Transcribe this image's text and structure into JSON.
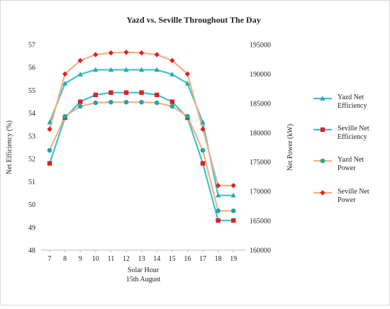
{
  "chart_data": {
    "type": "line",
    "title": "Yazd vs. Seville Throughout The Day",
    "xlabel": "Solar Hour",
    "xlabel_sub": "15th August",
    "ylabel_left": "Net Efficiency (%)",
    "ylabel_right": "Net Power (kW)",
    "x": [
      7,
      8,
      9,
      10,
      11,
      12,
      13,
      14,
      15,
      16,
      17,
      18,
      19
    ],
    "ylim_left": [
      48,
      57
    ],
    "yticks_left": [
      48,
      49,
      50,
      51,
      52,
      53,
      54,
      55,
      56,
      57
    ],
    "ylim_right": [
      160000,
      195000
    ],
    "yticks_right": [
      160000,
      165000,
      170000,
      175000,
      180000,
      185000,
      190000,
      195000
    ],
    "grid": false,
    "legend_position": "right",
    "series": [
      {
        "name": "Yazd Net Efficiency",
        "axis": "left",
        "marker": "triangle",
        "color": "#3ec1d3",
        "marker_color": "#20a8b0",
        "values": [
          53.6,
          55.3,
          55.7,
          55.9,
          55.9,
          55.9,
          55.9,
          55.9,
          55.7,
          55.3,
          53.6,
          50.4,
          50.4
        ]
      },
      {
        "name": "Seville Net Efficiency",
        "axis": "left",
        "marker": "square",
        "color": "#3ec1d3",
        "marker_color": "#e02020",
        "values": [
          51.8,
          53.8,
          54.5,
          54.8,
          54.9,
          54.9,
          54.9,
          54.8,
          54.5,
          53.8,
          51.8,
          49.3,
          49.3
        ]
      },
      {
        "name": "Yazd Net Power",
        "axis": "right",
        "marker": "circle",
        "color": "#f4b183",
        "marker_color": "#20a8a0",
        "values": [
          177000,
          182800,
          184500,
          185100,
          185200,
          185200,
          185200,
          185100,
          184500,
          182800,
          177000,
          166700,
          166700
        ]
      },
      {
        "name": "Seville Net Power",
        "axis": "right",
        "marker": "diamond",
        "color": "#f4b183",
        "marker_color": "#e02020",
        "values": [
          180600,
          190000,
          192300,
          193300,
          193600,
          193700,
          193600,
          193300,
          192300,
          190000,
          180600,
          171000,
          171000
        ]
      }
    ]
  }
}
